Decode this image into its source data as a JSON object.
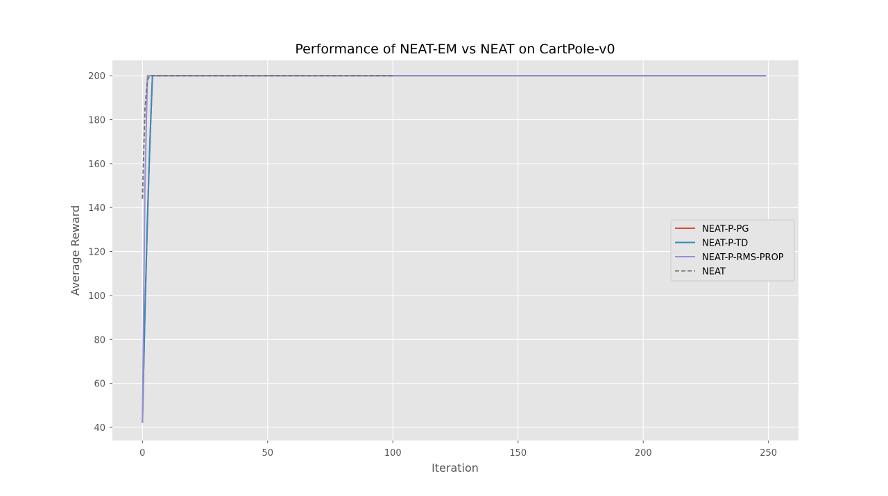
{
  "chart_data": {
    "type": "line",
    "title": "Performance of NEAT-EM vs NEAT on CartPole-v0",
    "xlabel": "Iteration",
    "ylabel": "Average Reward",
    "xlim": [
      -12,
      262
    ],
    "ylim": [
      34,
      207
    ],
    "xticks": [
      0,
      50,
      100,
      150,
      200,
      250
    ],
    "yticks": [
      40,
      60,
      80,
      100,
      120,
      140,
      160,
      180,
      200
    ],
    "grid": true,
    "legend_position": "center-right",
    "series": [
      {
        "name": "NEAT-P-PG",
        "color": "#e24a33",
        "dash": "solid",
        "x": [
          0,
          1,
          2,
          3,
          4,
          249
        ],
        "y": [
          42,
          92,
          135,
          170,
          200,
          200
        ]
      },
      {
        "name": "NEAT-P-TD",
        "color": "#348abd",
        "dash": "solid",
        "x": [
          0,
          1,
          2,
          3,
          4,
          249
        ],
        "y": [
          42,
          92,
          135,
          170,
          200,
          200
        ]
      },
      {
        "name": "NEAT-P-RMS-PROP",
        "color": "#988ed5",
        "dash": "solid",
        "x": [
          0,
          1,
          2,
          249
        ],
        "y": [
          42,
          150,
          200,
          200
        ]
      },
      {
        "name": "NEAT",
        "color": "#777777",
        "dash": "dashed",
        "x": [
          0,
          1,
          2,
          3,
          100
        ],
        "y": [
          144,
          185,
          198,
          200,
          200
        ]
      }
    ]
  }
}
